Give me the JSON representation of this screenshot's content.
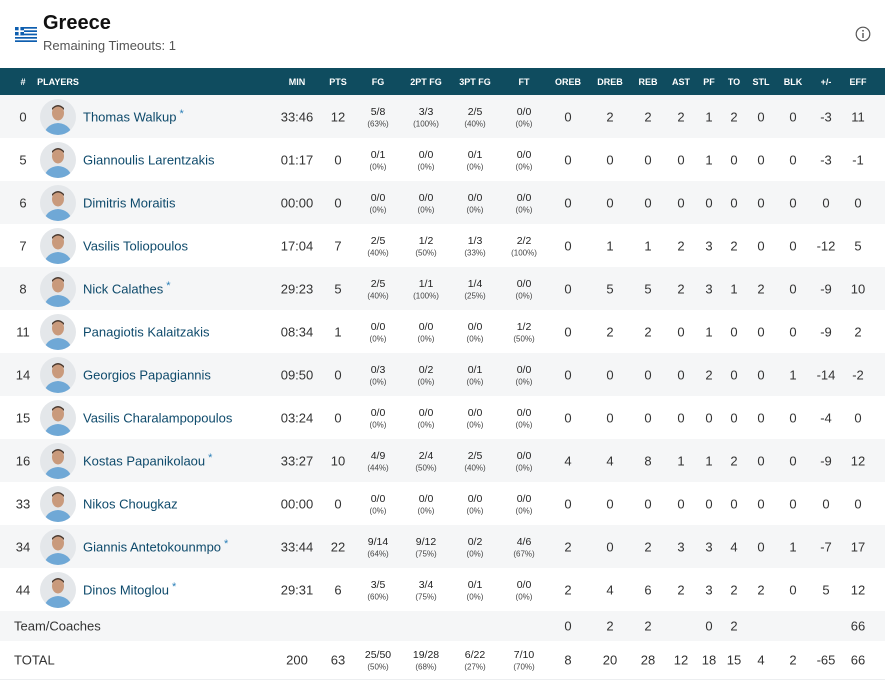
{
  "header": {
    "title": "Greece",
    "subtitle": "Remaining Timeouts: 1"
  },
  "table": {
    "columns": [
      "#",
      "PLAYERS",
      "MIN",
      "PTS",
      "FG",
      "2PT FG",
      "3PT FG",
      "FT",
      "OREB",
      "DREB",
      "REB",
      "AST",
      "PF",
      "TO",
      "STL",
      "BLK",
      "+/-",
      "EFF"
    ],
    "rows": [
      {
        "number": 0,
        "player": "Thomas Walkup",
        "starter": "*",
        "stats": [
          "33:46",
          12,
          {
            "made": "5/8",
            "pct": "(63%)"
          },
          {
            "made": "3/3",
            "pct": "(100%)"
          },
          {
            "made": "2/5",
            "pct": "(40%)"
          },
          {
            "made": "0/0",
            "pct": "(0%)"
          },
          0,
          2,
          2,
          2,
          1,
          2,
          0,
          0,
          -3,
          11
        ]
      },
      {
        "number": 5,
        "player": "Giannoulis Larentzakis",
        "stats": [
          "01:17",
          0,
          {
            "made": "0/1",
            "pct": "(0%)"
          },
          {
            "made": "0/0",
            "pct": "(0%)"
          },
          {
            "made": "0/1",
            "pct": "(0%)"
          },
          {
            "made": "0/0",
            "pct": "(0%)"
          },
          0,
          0,
          0,
          0,
          1,
          0,
          0,
          0,
          -3,
          -1
        ]
      },
      {
        "number": 6,
        "player": "Dimitris Moraitis",
        "stats": [
          "00:00",
          0,
          {
            "made": "0/0",
            "pct": "(0%)"
          },
          {
            "made": "0/0",
            "pct": "(0%)"
          },
          {
            "made": "0/0",
            "pct": "(0%)"
          },
          {
            "made": "0/0",
            "pct": "(0%)"
          },
          0,
          0,
          0,
          0,
          0,
          0,
          0,
          0,
          0,
          0
        ]
      },
      {
        "number": 7,
        "player": "Vasilis Toliopoulos",
        "stats": [
          "17:04",
          7,
          {
            "made": "2/5",
            "pct": "(40%)"
          },
          {
            "made": "1/2",
            "pct": "(50%)"
          },
          {
            "made": "1/3",
            "pct": "(33%)"
          },
          {
            "made": "2/2",
            "pct": "(100%)"
          },
          0,
          1,
          1,
          2,
          3,
          2,
          0,
          0,
          -12,
          5
        ]
      },
      {
        "number": 8,
        "player": "Nick Calathes",
        "starter": "*",
        "stats": [
          "29:23",
          5,
          {
            "made": "2/5",
            "pct": "(40%)"
          },
          {
            "made": "1/1",
            "pct": "(100%)"
          },
          {
            "made": "1/4",
            "pct": "(25%)"
          },
          {
            "made": "0/0",
            "pct": "(0%)"
          },
          0,
          5,
          5,
          2,
          3,
          1,
          2,
          0,
          -9,
          10
        ]
      },
      {
        "number": 11,
        "player": "Panagiotis Kalaitzakis",
        "stats": [
          "08:34",
          1,
          {
            "made": "0/0",
            "pct": "(0%)"
          },
          {
            "made": "0/0",
            "pct": "(0%)"
          },
          {
            "made": "0/0",
            "pct": "(0%)"
          },
          {
            "made": "1/2",
            "pct": "(50%)"
          },
          0,
          2,
          2,
          0,
          1,
          0,
          0,
          0,
          -9,
          2
        ]
      },
      {
        "number": 14,
        "player": "Georgios Papagiannis",
        "stats": [
          "09:50",
          0,
          {
            "made": "0/3",
            "pct": "(0%)"
          },
          {
            "made": "0/2",
            "pct": "(0%)"
          },
          {
            "made": "0/1",
            "pct": "(0%)"
          },
          {
            "made": "0/0",
            "pct": "(0%)"
          },
          0,
          0,
          0,
          0,
          2,
          0,
          0,
          1,
          -14,
          -2
        ]
      },
      {
        "number": 15,
        "player": "Vasilis Charalampopoulos",
        "stats": [
          "03:24",
          0,
          {
            "made": "0/0",
            "pct": "(0%)"
          },
          {
            "made": "0/0",
            "pct": "(0%)"
          },
          {
            "made": "0/0",
            "pct": "(0%)"
          },
          {
            "made": "0/0",
            "pct": "(0%)"
          },
          0,
          0,
          0,
          0,
          0,
          0,
          0,
          0,
          -4,
          0
        ]
      },
      {
        "number": 16,
        "player": "Kostas Papanikolaou",
        "starter": "*",
        "stats": [
          "33:27",
          10,
          {
            "made": "4/9",
            "pct": "(44%)"
          },
          {
            "made": "2/4",
            "pct": "(50%)"
          },
          {
            "made": "2/5",
            "pct": "(40%)"
          },
          {
            "made": "0/0",
            "pct": "(0%)"
          },
          4,
          4,
          8,
          1,
          1,
          2,
          0,
          0,
          -9,
          12
        ]
      },
      {
        "number": 33,
        "player": "Nikos Chougkaz",
        "stats": [
          "00:00",
          0,
          {
            "made": "0/0",
            "pct": "(0%)"
          },
          {
            "made": "0/0",
            "pct": "(0%)"
          },
          {
            "made": "0/0",
            "pct": "(0%)"
          },
          {
            "made": "0/0",
            "pct": "(0%)"
          },
          0,
          0,
          0,
          0,
          0,
          0,
          0,
          0,
          0,
          0
        ]
      },
      {
        "number": 34,
        "player": "Giannis Antetokounmpo",
        "starter": "*",
        "stats": [
          "33:44",
          22,
          {
            "made": "9/14",
            "pct": "(64%)"
          },
          {
            "made": "9/12",
            "pct": "(75%)"
          },
          {
            "made": "0/2",
            "pct": "(0%)"
          },
          {
            "made": "4/6",
            "pct": "(67%)"
          },
          2,
          0,
          2,
          3,
          3,
          4,
          0,
          1,
          -7,
          17
        ]
      },
      {
        "number": 44,
        "player": "Dinos Mitoglou",
        "starter": "*",
        "stats": [
          "29:31",
          6,
          {
            "made": "3/5",
            "pct": "(60%)"
          },
          {
            "made": "3/4",
            "pct": "(75%)"
          },
          {
            "made": "0/1",
            "pct": "(0%)"
          },
          {
            "made": "0/0",
            "pct": "(0%)"
          },
          2,
          4,
          6,
          2,
          3,
          2,
          2,
          0,
          5,
          12
        ]
      }
    ],
    "team": {
      "label": "Team/Coaches",
      "stats": [
        null,
        null,
        null,
        null,
        null,
        null,
        0,
        2,
        2,
        null,
        0,
        2,
        null,
        null,
        null,
        66
      ]
    },
    "total": {
      "label": "TOTAL",
      "stats": [
        200,
        63,
        {
          "made": "25/50",
          "pct": "(50%)"
        },
        {
          "made": "19/28",
          "pct": "(68%)"
        },
        {
          "made": "6/22",
          "pct": "(27%)"
        },
        {
          "made": "7/10",
          "pct": "(70%)"
        },
        8,
        20,
        28,
        12,
        18,
        15,
        4,
        2,
        -65,
        66
      ]
    }
  }
}
